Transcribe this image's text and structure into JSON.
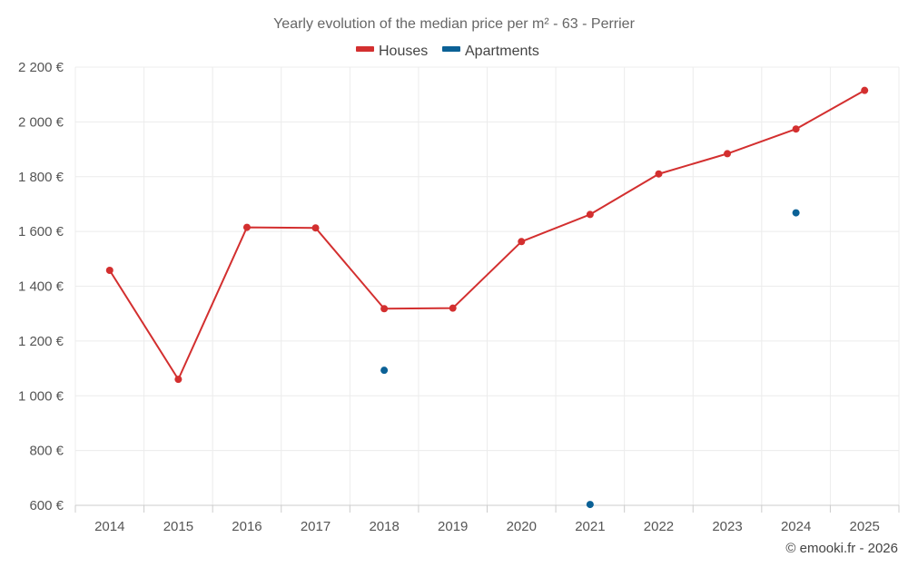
{
  "chart_data": {
    "type": "line",
    "title": "Yearly evolution of the median price per m² - 63 - Perrier",
    "categories": [
      "2014",
      "2015",
      "2016",
      "2017",
      "2018",
      "2019",
      "2020",
      "2021",
      "2022",
      "2023",
      "2024",
      "2025"
    ],
    "ylim": [
      600,
      2200
    ],
    "yticks": [
      600,
      800,
      1000,
      1200,
      1400,
      1600,
      1800,
      2000,
      2200
    ],
    "ytick_labels": [
      "600 €",
      "800 €",
      "1 000 €",
      "1 200 €",
      "1 400 €",
      "1 600 €",
      "1 800 €",
      "2 000 €",
      "2 200 €"
    ],
    "grid": true,
    "legend_position": "top-center",
    "series": [
      {
        "name": "Houses",
        "color": "#d32f2f",
        "values": [
          1458,
          1060,
          1615,
          1613,
          1318,
          1320,
          1563,
          1662,
          1810,
          1884,
          1974,
          2115
        ]
      },
      {
        "name": "Apartments",
        "color": "#0b6196",
        "values": [
          null,
          null,
          null,
          null,
          1093,
          null,
          null,
          603,
          null,
          null,
          1668,
          null
        ]
      }
    ],
    "credit": "© emooki.fr - 2026"
  }
}
